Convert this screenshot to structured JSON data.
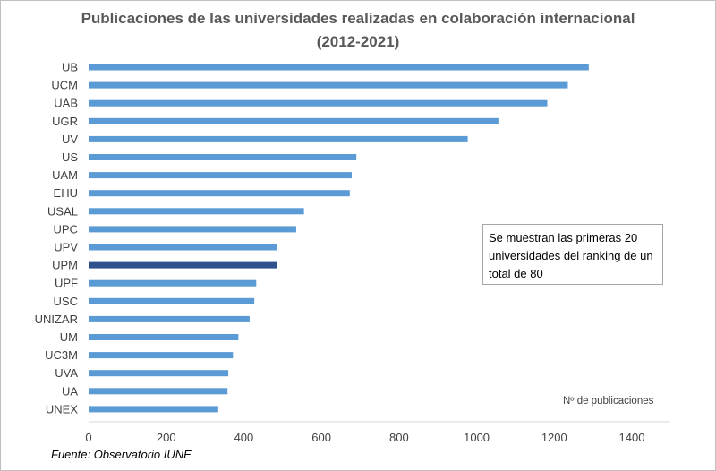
{
  "chart_data": {
    "type": "bar",
    "orientation": "horizontal",
    "title": "Publicaciones de las universidades realizadas en colaboración internacional",
    "subtitle": "(2012-2021)",
    "categories": [
      "UB",
      "UCM",
      "UAB",
      "UGR",
      "UV",
      "US",
      "UAM",
      "EHU",
      "USAL",
      "UPC",
      "UPV",
      "UPM",
      "UPF",
      "USC",
      "UNIZAR",
      "UM",
      "UC3M",
      "UVA",
      "UA",
      "UNEX"
    ],
    "values": [
      1289,
      1235,
      1182,
      1056,
      977,
      690,
      678,
      673,
      555,
      535,
      485,
      485,
      432,
      427,
      415,
      386,
      372,
      360,
      358,
      334
    ],
    "highlight": "UPM",
    "xlabel": "Nº de publicaciones",
    "xlim": [
      0,
      1400
    ],
    "xticks": [
      0,
      200,
      400,
      600,
      800,
      1000,
      1200,
      1400
    ],
    "grid": false,
    "colors": {
      "bar": "#5b9bd5",
      "highlight": "#2f528f"
    },
    "annotation": "Se muestran las primeras 20 universidades del ranking de un total de 80"
  },
  "source": "Fuente: Observatorio IUNE"
}
